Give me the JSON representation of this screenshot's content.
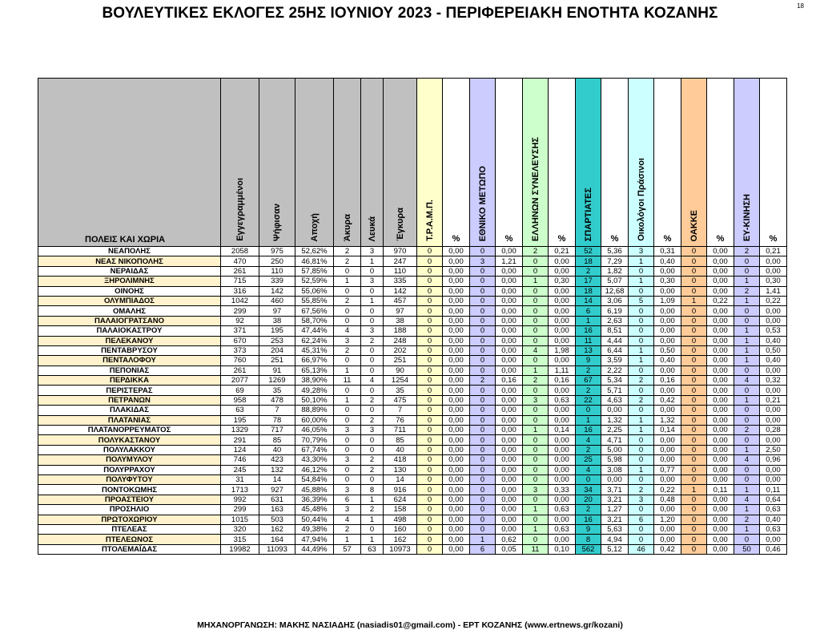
{
  "title": "ΒΟΥΛΕΥΤΙΚΕΣ ΕΚΛΟΓΕΣ 25ΗΣ ΙΟΥΝΙΟΥ 2023 - ΠΕΡΙΦΕΡΕΙΑΚΗ ΕΝΟΤΗΤΑ ΚΟΖΑΝΗΣ",
  "page_number": "18",
  "footer": "ΜΗΧΑΝΟΡΓΑΝΩΣΗ: ΜΑΚΗΣ ΝΑΣΙΑΔΗΣ (nasiadis01@gmail.com) - ΕΡΤ ΚΟΖΑΝΗΣ (www.ertnews.gr/kozani)",
  "headers": {
    "name": "ΠΟΛΕΙΣ ΚΑΙ ΧΩΡΙΑ",
    "registered": "Εγγεγραμμένοι",
    "voted": "Ψήφισαν",
    "abstention": "Αποχή",
    "invalid": "Άκυρα",
    "blank": "Λευκά",
    "valid": "Έγκυρα",
    "pct": "%",
    "parties": [
      "Τ.Ρ.Α.Μ.Π.",
      "ΕΘΝΙΚΟ ΜΕΤΩΠΟ",
      "ΕΛΛΗΝΩΝ ΣΥΝΕΛΕΥΣΗΣ",
      "ΣΠΑΡΤΙΑΤΕΣ",
      "Οικολόγοι Πράσινοι",
      "ΟΑΚΚΕ",
      "ΕΥ-ΚΙΝΗΣΗ"
    ]
  },
  "rows": [
    {
      "name": "ΝΕΑΠΟΛΗΣ",
      "reg": "2058",
      "voted": "975",
      "abst": "52,62%",
      "inv": "2",
      "blank": "3",
      "valid": "970",
      "p": [
        "0",
        "0,00",
        "0",
        "0,00",
        "2",
        "0,21",
        "52",
        "5,36",
        "3",
        "0,31",
        "0",
        "0,00",
        "2",
        "0,21"
      ]
    },
    {
      "name": "ΝΕΑΣ ΝΙΚΟΠΟΛΗΣ",
      "reg": "470",
      "voted": "250",
      "abst": "46,81%",
      "inv": "2",
      "blank": "1",
      "valid": "247",
      "p": [
        "0",
        "0,00",
        "3",
        "1,21",
        "0",
        "0,00",
        "18",
        "7,29",
        "1",
        "0,40",
        "0",
        "0,00",
        "0",
        "0,00"
      ]
    },
    {
      "name": "ΝΕΡΑΙΔΑΣ",
      "reg": "261",
      "voted": "110",
      "abst": "57,85%",
      "inv": "0",
      "blank": "0",
      "valid": "110",
      "p": [
        "0",
        "0,00",
        "0",
        "0,00",
        "0",
        "0,00",
        "2",
        "1,82",
        "0",
        "0,00",
        "0",
        "0,00",
        "0",
        "0,00"
      ]
    },
    {
      "name": "ΞΗΡΟΛΙΜΝΗΣ",
      "reg": "715",
      "voted": "339",
      "abst": "52,59%",
      "inv": "1",
      "blank": "3",
      "valid": "335",
      "p": [
        "0",
        "0,00",
        "0",
        "0,00",
        "1",
        "0,30",
        "17",
        "5,07",
        "1",
        "0,30",
        "0",
        "0,00",
        "1",
        "0,30"
      ]
    },
    {
      "name": "ΟΙΝΟΗΣ",
      "reg": "316",
      "voted": "142",
      "abst": "55,06%",
      "inv": "0",
      "blank": "0",
      "valid": "142",
      "p": [
        "0",
        "0,00",
        "0",
        "0,00",
        "0",
        "0,00",
        "18",
        "12,68",
        "0",
        "0,00",
        "0",
        "0,00",
        "2",
        "1,41"
      ]
    },
    {
      "name": "ΟΛΥΜΠΙΑΔΟΣ",
      "reg": "1042",
      "voted": "460",
      "abst": "55,85%",
      "inv": "2",
      "blank": "1",
      "valid": "457",
      "p": [
        "0",
        "0,00",
        "0",
        "0,00",
        "0",
        "0,00",
        "14",
        "3,06",
        "5",
        "1,09",
        "1",
        "0,22",
        "1",
        "0,22"
      ]
    },
    {
      "name": "ΟΜΑΛΗΣ",
      "reg": "299",
      "voted": "97",
      "abst": "67,56%",
      "inv": "0",
      "blank": "0",
      "valid": "97",
      "p": [
        "0",
        "0,00",
        "0",
        "0,00",
        "0",
        "0,00",
        "6",
        "6,19",
        "0",
        "0,00",
        "0",
        "0,00",
        "0",
        "0,00"
      ]
    },
    {
      "name": "ΠΑΛΑΙΟΓΡΑΤΣΑΝΟ",
      "reg": "92",
      "voted": "38",
      "abst": "58,70%",
      "inv": "0",
      "blank": "0",
      "valid": "38",
      "p": [
        "0",
        "0,00",
        "0",
        "0,00",
        "0",
        "0,00",
        "1",
        "2,63",
        "0",
        "0,00",
        "0",
        "0,00",
        "0",
        "0,00"
      ]
    },
    {
      "name": "ΠΑΛΑΙΟΚΑΣΤΡΟΥ",
      "reg": "371",
      "voted": "195",
      "abst": "47,44%",
      "inv": "4",
      "blank": "3",
      "valid": "188",
      "p": [
        "0",
        "0,00",
        "0",
        "0,00",
        "0",
        "0,00",
        "16",
        "8,51",
        "0",
        "0,00",
        "0",
        "0,00",
        "1",
        "0,53"
      ]
    },
    {
      "name": "ΠΕΛΕΚΑΝΟΥ",
      "reg": "670",
      "voted": "253",
      "abst": "62,24%",
      "inv": "3",
      "blank": "2",
      "valid": "248",
      "p": [
        "0",
        "0,00",
        "0",
        "0,00",
        "0",
        "0,00",
        "11",
        "4,44",
        "0",
        "0,00",
        "0",
        "0,00",
        "1",
        "0,40"
      ]
    },
    {
      "name": "ΠΕΝΤΑΒΡΥΣΟΥ",
      "reg": "373",
      "voted": "204",
      "abst": "45,31%",
      "inv": "2",
      "blank": "0",
      "valid": "202",
      "p": [
        "0",
        "0,00",
        "0",
        "0,00",
        "4",
        "1,98",
        "13",
        "6,44",
        "1",
        "0,50",
        "0",
        "0,00",
        "1",
        "0,50"
      ]
    },
    {
      "name": "ΠΕΝΤΑΛΟΦΟΥ",
      "reg": "760",
      "voted": "251",
      "abst": "66,97%",
      "inv": "0",
      "blank": "0",
      "valid": "251",
      "p": [
        "0",
        "0,00",
        "0",
        "0,00",
        "0",
        "0,00",
        "9",
        "3,59",
        "1",
        "0,40",
        "0",
        "0,00",
        "1",
        "0,40"
      ]
    },
    {
      "name": "ΠΕΠΟΝΙΑΣ",
      "reg": "261",
      "voted": "91",
      "abst": "65,13%",
      "inv": "1",
      "blank": "0",
      "valid": "90",
      "p": [
        "0",
        "0,00",
        "0",
        "0,00",
        "1",
        "1,11",
        "2",
        "2,22",
        "0",
        "0,00",
        "0",
        "0,00",
        "0",
        "0,00"
      ]
    },
    {
      "name": "ΠΕΡΔΙΚΚΑ",
      "reg": "2077",
      "voted": "1269",
      "abst": "38,90%",
      "inv": "11",
      "blank": "4",
      "valid": "1254",
      "p": [
        "0",
        "0,00",
        "2",
        "0,16",
        "2",
        "0,16",
        "67",
        "5,34",
        "2",
        "0,16",
        "0",
        "0,00",
        "4",
        "0,32"
      ]
    },
    {
      "name": "ΠΕΡΙΣΤΕΡΑΣ",
      "reg": "69",
      "voted": "35",
      "abst": "49,28%",
      "inv": "0",
      "blank": "0",
      "valid": "35",
      "p": [
        "0",
        "0,00",
        "0",
        "0,00",
        "0",
        "0,00",
        "2",
        "5,71",
        "0",
        "0,00",
        "0",
        "0,00",
        "0",
        "0,00"
      ]
    },
    {
      "name": "ΠΕΤΡΑΝΩΝ",
      "reg": "958",
      "voted": "478",
      "abst": "50,10%",
      "inv": "1",
      "blank": "2",
      "valid": "475",
      "p": [
        "0",
        "0,00",
        "0",
        "0,00",
        "3",
        "0,63",
        "22",
        "4,63",
        "2",
        "0,42",
        "0",
        "0,00",
        "1",
        "0,21"
      ]
    },
    {
      "name": "ΠΛΑΚΙΔΑΣ",
      "reg": "63",
      "voted": "7",
      "abst": "88,89%",
      "inv": "0",
      "blank": "0",
      "valid": "7",
      "p": [
        "0",
        "0,00",
        "0",
        "0,00",
        "0",
        "0,00",
        "0",
        "0,00",
        "0",
        "0,00",
        "0",
        "0,00",
        "0",
        "0,00"
      ]
    },
    {
      "name": "ΠΛΑΤΑΝΙΑΣ",
      "reg": "195",
      "voted": "78",
      "abst": "60,00%",
      "inv": "0",
      "blank": "2",
      "valid": "76",
      "p": [
        "0",
        "0,00",
        "0",
        "0,00",
        "0",
        "0,00",
        "1",
        "1,32",
        "1",
        "1,32",
        "0",
        "0,00",
        "0",
        "0,00"
      ]
    },
    {
      "name": "ΠΛΑΤΑΝΟΡΡΕΥΜΑΤΟΣ",
      "reg": "1329",
      "voted": "717",
      "abst": "46,05%",
      "inv": "3",
      "blank": "3",
      "valid": "711",
      "p": [
        "0",
        "0,00",
        "0",
        "0,00",
        "1",
        "0,14",
        "16",
        "2,25",
        "1",
        "0,14",
        "0",
        "0,00",
        "2",
        "0,28"
      ]
    },
    {
      "name": "ΠΟΛΥΚΑΣΤΑΝΟΥ",
      "reg": "291",
      "voted": "85",
      "abst": "70,79%",
      "inv": "0",
      "blank": "0",
      "valid": "85",
      "p": [
        "0",
        "0,00",
        "0",
        "0,00",
        "0",
        "0,00",
        "4",
        "4,71",
        "0",
        "0,00",
        "0",
        "0,00",
        "0",
        "0,00"
      ]
    },
    {
      "name": "ΠΟΛΥΛΑΚΚΟΥ",
      "reg": "124",
      "voted": "40",
      "abst": "67,74%",
      "inv": "0",
      "blank": "0",
      "valid": "40",
      "p": [
        "0",
        "0,00",
        "0",
        "0,00",
        "0",
        "0,00",
        "2",
        "5,00",
        "0",
        "0,00",
        "0",
        "0,00",
        "1",
        "2,50"
      ]
    },
    {
      "name": "ΠΟΛΥΜΥΛΟΥ",
      "reg": "746",
      "voted": "423",
      "abst": "43,30%",
      "inv": "3",
      "blank": "2",
      "valid": "418",
      "p": [
        "0",
        "0,00",
        "0",
        "0,00",
        "0",
        "0,00",
        "25",
        "5,98",
        "0",
        "0,00",
        "0",
        "0,00",
        "4",
        "0,96"
      ]
    },
    {
      "name": "ΠΟΛΥΡΡΑΧΟΥ",
      "reg": "245",
      "voted": "132",
      "abst": "46,12%",
      "inv": "0",
      "blank": "2",
      "valid": "130",
      "p": [
        "0",
        "0,00",
        "0",
        "0,00",
        "0",
        "0,00",
        "4",
        "3,08",
        "1",
        "0,77",
        "0",
        "0,00",
        "0",
        "0,00"
      ]
    },
    {
      "name": "ΠΟΛΥΦΥΤΟΥ",
      "reg": "31",
      "voted": "14",
      "abst": "54,84%",
      "inv": "0",
      "blank": "0",
      "valid": "14",
      "p": [
        "0",
        "0,00",
        "0",
        "0,00",
        "0",
        "0,00",
        "0",
        "0,00",
        "0",
        "0,00",
        "0",
        "0,00",
        "0",
        "0,00"
      ]
    },
    {
      "name": "ΠΟΝΤΟΚΩΜΗΣ",
      "reg": "1713",
      "voted": "927",
      "abst": "45,88%",
      "inv": "3",
      "blank": "8",
      "valid": "916",
      "p": [
        "0",
        "0,00",
        "0",
        "0,00",
        "3",
        "0,33",
        "34",
        "3,71",
        "2",
        "0,22",
        "1",
        "0,11",
        "1",
        "0,11"
      ]
    },
    {
      "name": "ΠΡΟΑΣΤΕΙΟΥ",
      "reg": "992",
      "voted": "631",
      "abst": "36,39%",
      "inv": "6",
      "blank": "1",
      "valid": "624",
      "p": [
        "0",
        "0,00",
        "0",
        "0,00",
        "0",
        "0,00",
        "20",
        "3,21",
        "3",
        "0,48",
        "0",
        "0,00",
        "4",
        "0,64"
      ]
    },
    {
      "name": "ΠΡΟΣΗΛΙΟ",
      "reg": "299",
      "voted": "163",
      "abst": "45,48%",
      "inv": "3",
      "blank": "2",
      "valid": "158",
      "p": [
        "0",
        "0,00",
        "0",
        "0,00",
        "1",
        "0,63",
        "2",
        "1,27",
        "0",
        "0,00",
        "0",
        "0,00",
        "1",
        "0,63"
      ]
    },
    {
      "name": "ΠΡΩΤΟΧΩΡΙΟΥ",
      "reg": "1015",
      "voted": "503",
      "abst": "50,44%",
      "inv": "4",
      "blank": "1",
      "valid": "498",
      "p": [
        "0",
        "0,00",
        "0",
        "0,00",
        "0",
        "0,00",
        "16",
        "3,21",
        "6",
        "1,20",
        "0",
        "0,00",
        "2",
        "0,40"
      ]
    },
    {
      "name": "ΠΤΕΛΕΑΣ",
      "reg": "320",
      "voted": "162",
      "abst": "49,38%",
      "inv": "2",
      "blank": "0",
      "valid": "160",
      "p": [
        "0",
        "0,00",
        "0",
        "0,00",
        "1",
        "0,63",
        "9",
        "5,63",
        "0",
        "0,00",
        "0",
        "0,00",
        "1",
        "0,63"
      ]
    },
    {
      "name": "ΠΤΕΛΕΩΝΟΣ",
      "reg": "315",
      "voted": "164",
      "abst": "47,94%",
      "inv": "1",
      "blank": "1",
      "valid": "162",
      "p": [
        "0",
        "0,00",
        "1",
        "0,62",
        "0",
        "0,00",
        "8",
        "4,94",
        "0",
        "0,00",
        "0",
        "0,00",
        "0",
        "0,00"
      ]
    },
    {
      "name": "ΠΤΟΛΕΜΑΪΔΑΣ",
      "reg": "19982",
      "voted": "11093",
      "abst": "44,49%",
      "inv": "57",
      "blank": "63",
      "valid": "10973",
      "p": [
        "0",
        "0,00",
        "6",
        "0,05",
        "11",
        "0,10",
        "562",
        "5,12",
        "46",
        "0,42",
        "0",
        "0,00",
        "50",
        "0,46"
      ]
    }
  ]
}
